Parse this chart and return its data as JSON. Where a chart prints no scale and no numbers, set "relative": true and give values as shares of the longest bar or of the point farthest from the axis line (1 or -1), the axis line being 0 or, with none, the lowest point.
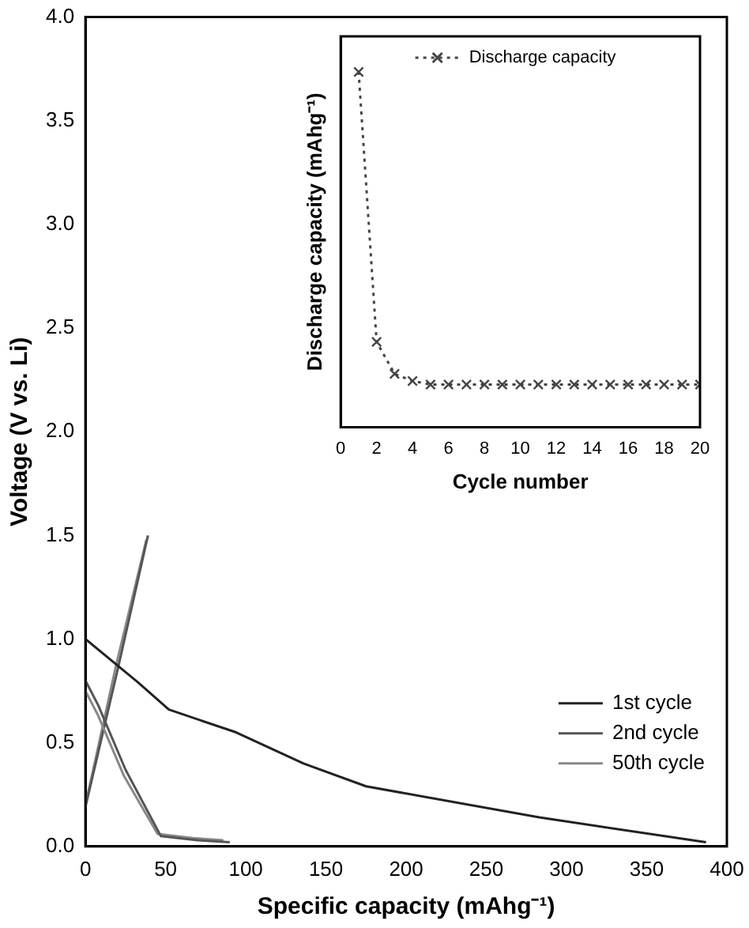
{
  "chart_data": [
    {
      "type": "line",
      "xlabel": "Specific capacity (mAhg⁻¹)",
      "ylabel": "Voltage (V vs. Li)",
      "xlim": [
        0,
        400
      ],
      "xticks": [
        0,
        50,
        100,
        150,
        200,
        250,
        300,
        350,
        400
      ],
      "ylim": [
        0,
        4
      ],
      "yticks": [
        {
          "value": 0,
          "label": "0.0"
        },
        {
          "value": 0.5,
          "label": "0.5"
        },
        {
          "value": 1,
          "label": "1.0"
        },
        {
          "value": 1.5,
          "label": "1.5"
        },
        {
          "value": 2,
          "label": "2.0"
        },
        {
          "value": 2.5,
          "label": "2.5"
        },
        {
          "value": 3,
          "label": "3.0"
        },
        {
          "value": 3.5,
          "label": "3.5"
        },
        {
          "value": 4,
          "label": "4.0"
        }
      ],
      "legend": "bottom right",
      "marker": "none",
      "line_style": "solid",
      "grid": false,
      "series": [
        {
          "name": "1st cycle",
          "color": "#222222",
          "x": [
            0,
            33,
            52,
            94,
            136,
            175,
            283,
            387
          ],
          "values": [
            1.0,
            0.79,
            0.66,
            0.55,
            0.4,
            0.29,
            0.14,
            0.02
          ]
        },
        {
          "name": "2nd cycle",
          "color": "#555555",
          "x": [
            0,
            8,
            25,
            47,
            70,
            90
          ],
          "values": [
            0.8,
            0.68,
            0.37,
            0.05,
            0.03,
            0.02
          ]
        },
        {
          "name": "50th cycle",
          "color": "#888888",
          "x": [
            0,
            8,
            24,
            45,
            67,
            86
          ],
          "values": [
            0.75,
            0.63,
            0.34,
            0.06,
            0.04,
            0.03
          ]
        },
        {
          "color": "#555555",
          "x": [
            0,
            20,
            39
          ],
          "values": [
            0.19,
            0.85,
            1.5
          ]
        },
        {
          "color": "#888888",
          "x": [
            0,
            19,
            38
          ],
          "values": [
            0.2,
            0.87,
            1.48
          ]
        }
      ]
    },
    {
      "type": "line",
      "xlabel": "Cycle number",
      "ylabel": "Discharge capacity (mAhg⁻¹)",
      "relative": true,
      "xlim": [
        0,
        20
      ],
      "xticks": [
        0,
        2,
        4,
        6,
        8,
        10,
        12,
        14,
        16,
        18,
        20
      ],
      "legend": "top",
      "marker": "cross",
      "line_style": "dotted",
      "grid": false,
      "series": [
        {
          "name": "Discharge capacity",
          "color": "#444444",
          "x": [
            1,
            2,
            3,
            4,
            5,
            6,
            7,
            8,
            9,
            10,
            11,
            12,
            13,
            14,
            15,
            16,
            17,
            18,
            19,
            20
          ],
          "values": [
            1.0,
            0.24,
            0.15,
            0.13,
            0.12,
            0.12,
            0.12,
            0.12,
            0.12,
            0.12,
            0.12,
            0.12,
            0.12,
            0.12,
            0.12,
            0.12,
            0.12,
            0.12,
            0.12,
            0.12
          ]
        }
      ]
    }
  ]
}
